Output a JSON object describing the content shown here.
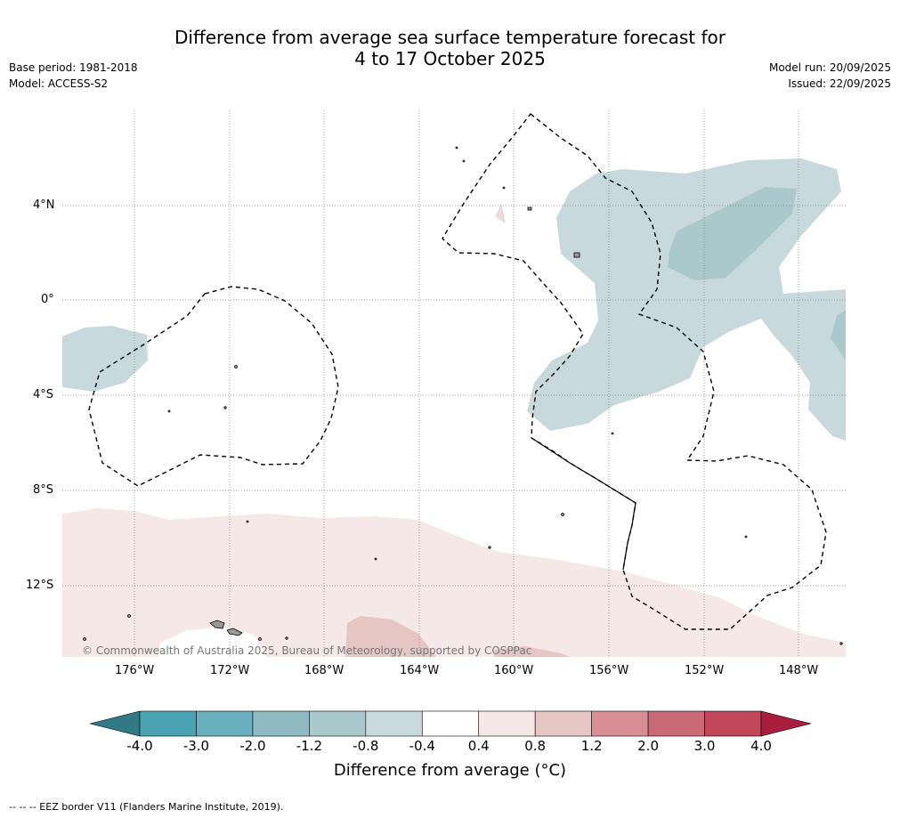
{
  "header": {
    "title_line1": "Difference from average sea surface temperature forecast for",
    "title_line2": "4 to 17 October 2025",
    "base_period": "Base period: 1981-2018",
    "model": "Model: ACCESS-S2",
    "model_run": "Model run: 20/09/2025",
    "issued": "Issued: 22/09/2025"
  },
  "map": {
    "lat_labels": [
      "4°N",
      "0°",
      "4°S",
      "8°S",
      "12°S"
    ],
    "lon_labels": [
      "176°W",
      "172°W",
      "168°W",
      "164°W",
      "160°W",
      "156°W",
      "152°W",
      "148°W"
    ],
    "copyright": "© Commonwealth of Australia 2025, Bureau of Meteorology, supported by COSPPac"
  },
  "colorbar": {
    "ticks": [
      "-4.0",
      "-3.0",
      "-2.0",
      "-1.2",
      "-0.8",
      "-0.4",
      "0.4",
      "0.8",
      "1.2",
      "2.0",
      "3.0",
      "4.0"
    ],
    "colors": [
      "#2f7a85",
      "#4aa3b2",
      "#6aafbd",
      "#8fbac1",
      "#abc8cd",
      "#c8d9dd",
      "#ffffff",
      "#f5e8e6",
      "#e6c6c2",
      "#d88e95",
      "#c96a76",
      "#c0485a",
      "#a81e3c"
    ],
    "label": "Difference from average (°C)",
    "label_main": "Difference from average (",
    "label_unit": "°C",
    "label_close": ")"
  },
  "footer": {
    "eez_note": "--  --  -- EEZ border V11 (Flanders Marine Institute, 2019)."
  }
}
